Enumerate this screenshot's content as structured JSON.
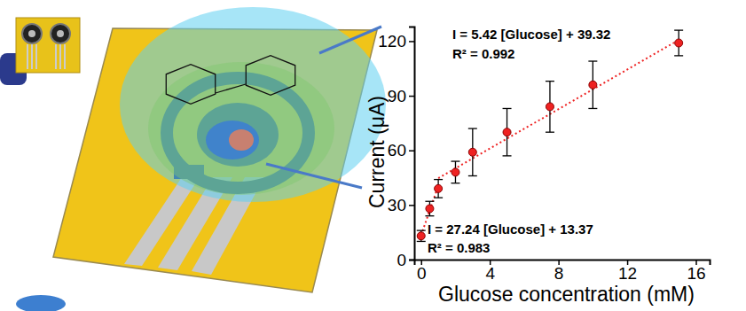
{
  "chart_data": {
    "type": "scatter",
    "x_label": "Glucose concentration (mM)",
    "y_label": "Current (μA)",
    "xlim": [
      -0.4,
      16.8
    ],
    "xticks": [
      0,
      4,
      8,
      12,
      16
    ],
    "ylim": [
      0,
      128
    ],
    "yticks": [
      0,
      30,
      60,
      90,
      120
    ],
    "annotations": [
      "I = 5.42 [Glucose] + 39.32",
      "R² = 0.992",
      "I = 27.24 [Glucose] + 13.37",
      "R² = 0.983"
    ],
    "series": [
      {
        "type": "scatter",
        "color": "#ee2222",
        "marker": "circle",
        "x": [
          0,
          0.5,
          1,
          2,
          3,
          5,
          7.5,
          10,
          15
        ],
        "values": [
          13,
          28,
          39,
          48,
          59,
          70,
          84,
          96,
          119
        ],
        "errors": [
          3,
          4,
          5,
          6,
          13,
          13,
          14,
          13,
          7
        ]
      },
      {
        "type": "line",
        "color": "#ee2222",
        "line_style": "dotted",
        "x": [
          0,
          1
        ],
        "values": [
          13.37,
          40.61
        ]
      },
      {
        "type": "line",
        "color": "#ee2222",
        "line_style": "dotted",
        "x": [
          1,
          15
        ],
        "values": [
          44.74,
          120.62
        ]
      }
    ]
  }
}
